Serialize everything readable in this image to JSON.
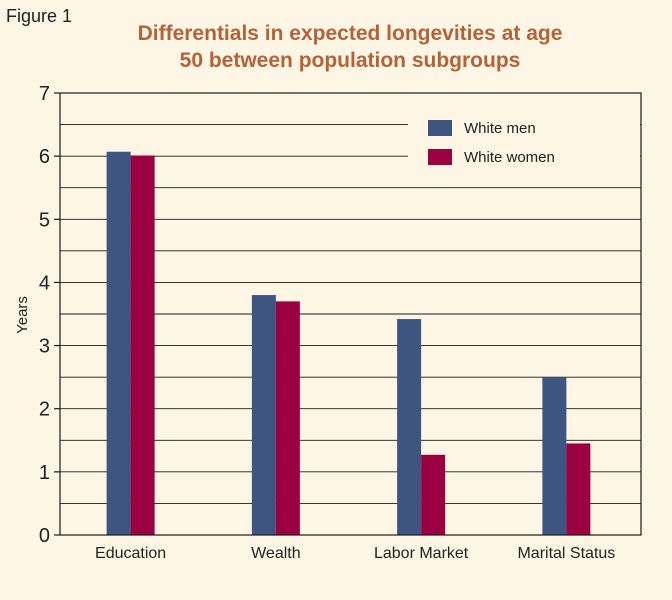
{
  "figure_label": "Figure 1",
  "chart_data": {
    "type": "bar",
    "title_lines": [
      "Differentials in expected longevities at age",
      "50 between population subgroups"
    ],
    "xlabel": "",
    "ylabel": "Years",
    "ylim": [
      0,
      7
    ],
    "yticks": [
      "0",
      "1",
      "2",
      "3",
      "4",
      "5",
      "6",
      "7"
    ],
    "grid": true,
    "legend_position": "top-right",
    "categories": [
      "Education",
      "Wealth",
      "Labor Market",
      "Marital Status"
    ],
    "series": [
      {
        "name": "White men",
        "color": "#3d5580",
        "values": [
          6.07,
          3.8,
          3.42,
          2.5
        ]
      },
      {
        "name": "White women",
        "color": "#9b0040",
        "values": [
          6.01,
          3.7,
          1.27,
          1.45
        ]
      }
    ]
  }
}
